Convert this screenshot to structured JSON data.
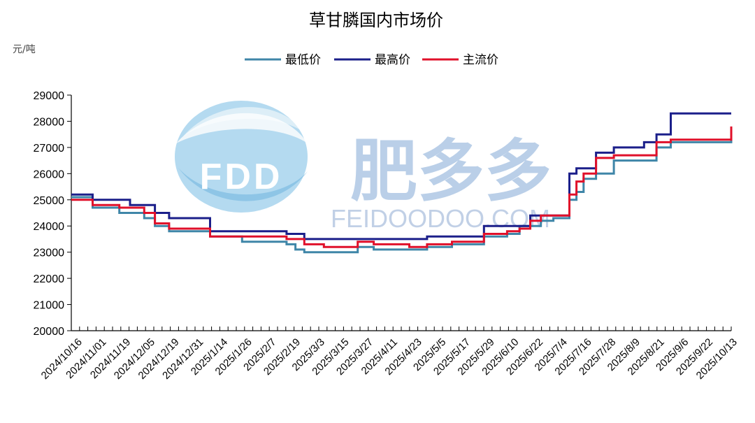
{
  "chart_data": {
    "type": "line",
    "title": "草甘膦国内市场价",
    "unit": "元/吨",
    "ylim": [
      20000,
      29000
    ],
    "yticks": [
      20000,
      21000,
      22000,
      23000,
      24000,
      25000,
      26000,
      27000,
      28000,
      29000
    ],
    "x_range": [
      "2024-10-10",
      "2025-10-16"
    ],
    "xtick_labels": [
      "2024/10/16",
      "2024/11/01",
      "2024/11/19",
      "2024/12/05",
      "2024/12/19",
      "2024/12/31",
      "2025/1/14",
      "2025/1/26",
      "2025/2/7",
      "2025/2/19",
      "2025/3/3",
      "2025/3/15",
      "2025/3/27",
      "2025/4/11",
      "2025/4/23",
      "2025/5/5",
      "2025/5/17",
      "2025/5/29",
      "2025/6/10",
      "2025/6/22",
      "2025/7/4",
      "2025/7/16",
      "2025/7/28",
      "2025/8/9",
      "2025/8/21",
      "2025/9/6",
      "2025/9/22",
      "2025/10/13"
    ],
    "grid": false,
    "legend_position": "top-center",
    "watermark": {
      "logo_text": "FDD",
      "brand": "肥多多",
      "url": "FEIDOODOO.COM"
    },
    "series": [
      {
        "name": "最低价",
        "color": "#3f86a8",
        "x": [
          "2024-10-10",
          "2024-10-22",
          "2024-11-06",
          "2024-11-12",
          "2024-11-20",
          "2024-11-26",
          "2024-12-04",
          "2024-12-10",
          "2024-12-19",
          "2024-12-27",
          "2025-01-14",
          "2025-01-26",
          "2025-02-08",
          "2025-02-13",
          "2025-02-18",
          "2025-02-24",
          "2025-03-01",
          "2025-03-20",
          "2025-03-29",
          "2025-04-05",
          "2025-04-18",
          "2025-04-28",
          "2025-05-06",
          "2025-05-12",
          "2025-05-30",
          "2025-06-12",
          "2025-06-19",
          "2025-06-25",
          "2025-07-01",
          "2025-07-08",
          "2025-07-13",
          "2025-07-17",
          "2025-07-21",
          "2025-07-25",
          "2025-08-01",
          "2025-08-11",
          "2025-08-24",
          "2025-08-28",
          "2025-09-04",
          "2025-09-12",
          "2025-10-16"
        ],
        "y": [
          25100,
          24700,
          24500,
          24500,
          24300,
          24000,
          23800,
          23800,
          23800,
          23600,
          23400,
          23400,
          23300,
          23100,
          23000,
          23000,
          23000,
          23200,
          23100,
          23100,
          23100,
          23200,
          23200,
          23300,
          23600,
          23700,
          24000,
          24000,
          24200,
          24300,
          24300,
          25000,
          25300,
          25800,
          26000,
          26500,
          26500,
          26500,
          27000,
          27200,
          27500
        ]
      },
      {
        "name": "最高价",
        "color": "#1b1f8a",
        "x": [
          "2024-10-10",
          "2024-10-22",
          "2024-11-06",
          "2024-11-12",
          "2024-11-20",
          "2024-11-26",
          "2024-12-04",
          "2024-12-10",
          "2024-12-19",
          "2024-12-27",
          "2025-01-14",
          "2025-01-26",
          "2025-02-08",
          "2025-02-13",
          "2025-02-18",
          "2025-02-24",
          "2025-03-01",
          "2025-03-20",
          "2025-03-29",
          "2025-04-05",
          "2025-04-18",
          "2025-04-28",
          "2025-05-06",
          "2025-05-12",
          "2025-05-30",
          "2025-06-12",
          "2025-06-19",
          "2025-06-25",
          "2025-07-01",
          "2025-07-08",
          "2025-07-13",
          "2025-07-17",
          "2025-07-21",
          "2025-07-25",
          "2025-08-01",
          "2025-08-11",
          "2025-08-24",
          "2025-08-28",
          "2025-09-04",
          "2025-09-12",
          "2025-10-16"
        ],
        "y": [
          25200,
          25000,
          25000,
          24800,
          24800,
          24500,
          24300,
          24300,
          24300,
          23800,
          23800,
          23800,
          23700,
          23700,
          23500,
          23500,
          23500,
          23500,
          23500,
          23500,
          23500,
          23600,
          23600,
          23600,
          24000,
          24000,
          24000,
          24400,
          24400,
          24400,
          24400,
          26000,
          26200,
          26200,
          26800,
          27000,
          27000,
          27200,
          27500,
          28300,
          28300
        ]
      },
      {
        "name": "主流价",
        "color": "#e0102a",
        "x": [
          "2024-10-10",
          "2024-10-22",
          "2024-11-06",
          "2024-11-12",
          "2024-11-20",
          "2024-11-26",
          "2024-12-04",
          "2024-12-10",
          "2024-12-19",
          "2024-12-27",
          "2025-01-14",
          "2025-01-26",
          "2025-02-08",
          "2025-02-13",
          "2025-02-18",
          "2025-02-24",
          "2025-03-01",
          "2025-03-20",
          "2025-03-29",
          "2025-04-05",
          "2025-04-18",
          "2025-04-28",
          "2025-05-06",
          "2025-05-12",
          "2025-05-30",
          "2025-06-12",
          "2025-06-19",
          "2025-06-25",
          "2025-07-01",
          "2025-07-08",
          "2025-07-13",
          "2025-07-17",
          "2025-07-21",
          "2025-07-25",
          "2025-08-01",
          "2025-08-11",
          "2025-08-24",
          "2025-08-28",
          "2025-09-04",
          "2025-09-12",
          "2025-10-16"
        ],
        "y": [
          25000,
          24800,
          24700,
          24700,
          24500,
          24100,
          23900,
          23900,
          23900,
          23600,
          23600,
          23600,
          23500,
          23500,
          23300,
          23300,
          23200,
          23400,
          23300,
          23300,
          23200,
          23300,
          23300,
          23400,
          23700,
          23800,
          23900,
          24200,
          24400,
          24400,
          24400,
          25200,
          25700,
          26000,
          26600,
          26700,
          26700,
          26700,
          27200,
          27300,
          27800
        ]
      }
    ]
  }
}
